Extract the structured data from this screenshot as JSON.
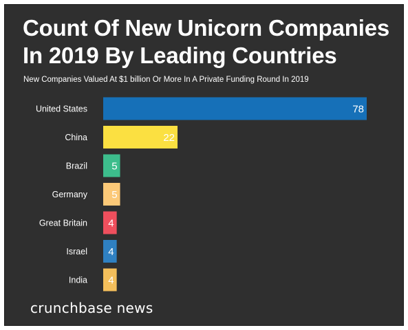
{
  "header": {
    "title": "Count Of New Unicorn Companies In 2019 By Leading Countries",
    "subtitle": "New Companies Valued At $1 billion Or More In A Private Funding Round In 2019"
  },
  "footer": {
    "brand": "crunchbase news"
  },
  "colors": {
    "background": "#2f2f2f",
    "text": "#ffffff"
  },
  "chart_data": {
    "type": "bar",
    "orientation": "horizontal",
    "title": "Count Of New Unicorn Companies In 2019 By Leading Countries",
    "subtitle": "New Companies Valued At $1 billion Or More In A Private Funding Round In 2019",
    "xlabel": "",
    "ylabel": "",
    "grid": false,
    "legend": "none",
    "xlim": [
      0,
      78
    ],
    "categories": [
      "United States",
      "China",
      "Brazil",
      "Germany",
      "Great Britain",
      "Israel",
      "India"
    ],
    "values": [
      78,
      22,
      5,
      5,
      4,
      4,
      4
    ],
    "data_labels": [
      "78",
      "22",
      "5",
      "5",
      "4",
      "4",
      "4"
    ],
    "bar_colors": [
      "#1670b8",
      "#fbe041",
      "#3dbd8c",
      "#fcc978",
      "#ef4f5d",
      "#2f80c1",
      "#f4bf5b"
    ]
  }
}
